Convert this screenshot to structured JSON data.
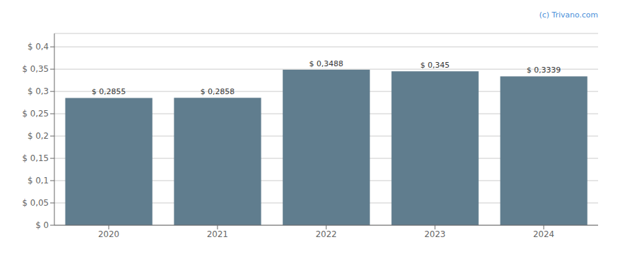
{
  "chart_data": {
    "type": "bar",
    "categories": [
      "2020",
      "2021",
      "2022",
      "2023",
      "2024"
    ],
    "values": [
      0.2855,
      0.2858,
      0.3488,
      0.345,
      0.3339
    ],
    "value_labels": [
      "$ 0,2855",
      "$ 0,2858",
      "$ 0,3488",
      "$ 0,345",
      "$ 0,3339"
    ],
    "data_labels": true,
    "color": "#607d8e",
    "ylim": [
      0,
      0.43
    ],
    "yticks": [
      {
        "value": 0,
        "label": "$ 0"
      },
      {
        "value": 0.05,
        "label": "$ 0,05"
      },
      {
        "value": 0.1,
        "label": "$ 0,1"
      },
      {
        "value": 0.15,
        "label": "$ 0,15"
      },
      {
        "value": 0.2,
        "label": "$ 0,2"
      },
      {
        "value": 0.25,
        "label": "$ 0,25"
      },
      {
        "value": 0.3,
        "label": "$ 0,3"
      },
      {
        "value": 0.35,
        "label": "$ 0,35"
      },
      {
        "value": 0.4,
        "label": "$ 0,4"
      }
    ],
    "grid": true,
    "annotations": [
      {
        "text": "(c) Trivano.com",
        "color": "#4a90d9"
      }
    ]
  }
}
